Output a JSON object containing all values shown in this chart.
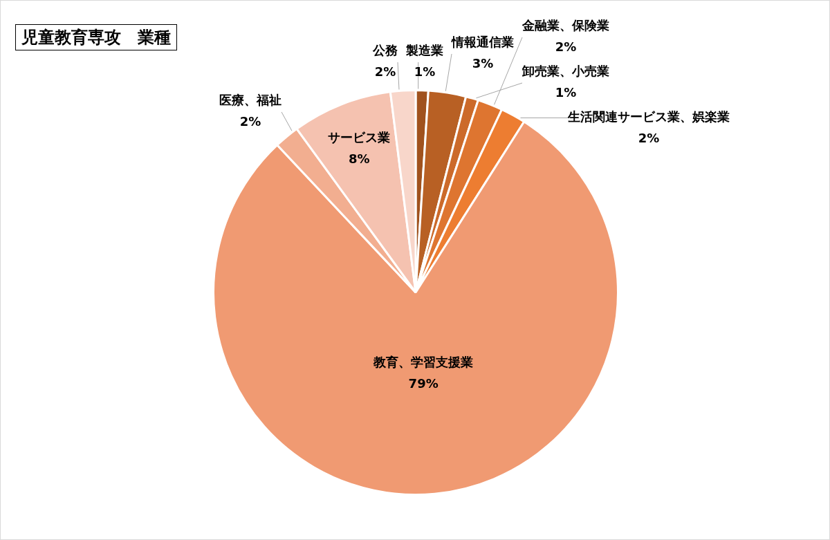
{
  "chart_data": {
    "type": "pie",
    "title": "児童教育専攻　業種",
    "categories": [
      "製造業",
      "情報通信業",
      "卸売業、小売業",
      "金融業、保険業",
      "生活関連サービス業、娯楽業",
      "教育、学習支援業",
      "医療、福祉",
      "サービス業",
      "公務"
    ],
    "values": [
      1,
      3,
      1,
      2,
      2,
      79,
      2,
      8,
      2
    ],
    "value_labels": [
      "1%",
      "3%",
      "1%",
      "2%",
      "2%",
      "79%",
      "2%",
      "8%",
      "2%"
    ],
    "colors": [
      "#a0521e",
      "#b86024",
      "#cc6a2a",
      "#de7530",
      "#ed7d31",
      "#f09a72",
      "#f2ae90",
      "#f5c2b0",
      "#f8d6ca"
    ]
  }
}
